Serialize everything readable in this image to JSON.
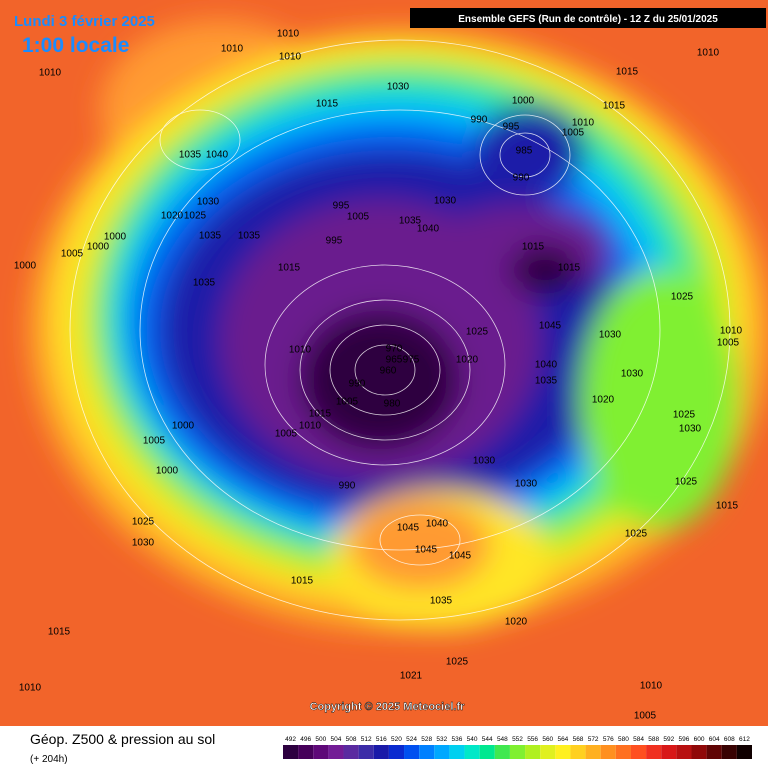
{
  "header": {
    "date": "Lundi 3 février 2025",
    "time": "1:00 locale",
    "model": "Ensemble GEFS (Run de contrôle)  -  12 Z du 25/01/2025"
  },
  "map": {
    "isobar_labels": [
      1010,
      1010,
      1010,
      1010,
      1030,
      1015,
      1000,
      990,
      995,
      1005,
      1010,
      1015,
      1015,
      1010,
      985,
      990,
      1035,
      1040,
      1030,
      1020,
      1025,
      1000,
      1000,
      1005,
      1000,
      1035,
      1035,
      995,
      995,
      1005,
      1035,
      1040,
      1030,
      1015,
      1015,
      1015,
      1035,
      1025,
      1045,
      1025,
      1030,
      1010,
      1005,
      1010,
      970,
      975,
      965,
      960,
      990,
      1005,
      980,
      1020,
      1040,
      1035,
      1030,
      1020,
      1015,
      1010,
      1005,
      1000,
      1005,
      1000,
      1025,
      1030,
      1030,
      1030,
      990,
      1025,
      1015,
      1025,
      1030,
      1045,
      1040,
      1045,
      1045,
      1025,
      1015,
      1035,
      1020,
      1015,
      1025,
      1021,
      1010,
      1010,
      1005
    ],
    "copyright": "Copyright © 2025 Meteociel.fr"
  },
  "footer": {
    "title": "Géop. Z500 & pression au sol",
    "lead_time": "(+ 204h)",
    "scale": {
      "values": [
        492,
        496,
        500,
        504,
        508,
        512,
        516,
        520,
        524,
        528,
        532,
        536,
        540,
        544,
        548,
        552,
        556,
        560,
        564,
        568,
        572,
        576,
        580,
        584,
        588,
        592,
        596,
        600,
        604,
        608,
        612
      ],
      "colors": [
        "#2d0040",
        "#46005a",
        "#5e0878",
        "#731c96",
        "#5a2aa0",
        "#3c2ca8",
        "#1a1aa8",
        "#0a2ad0",
        "#0050f0",
        "#0080ff",
        "#00a8ff",
        "#00d0f0",
        "#00e8c8",
        "#00e890",
        "#40e850",
        "#80f030",
        "#b0f020",
        "#e0f020",
        "#fff020",
        "#ffd020",
        "#ffb020",
        "#ff9020",
        "#ff7020",
        "#ff5020",
        "#f03020",
        "#d81818",
        "#b81010",
        "#900808",
        "#600404",
        "#380202",
        "#100000"
      ]
    }
  }
}
